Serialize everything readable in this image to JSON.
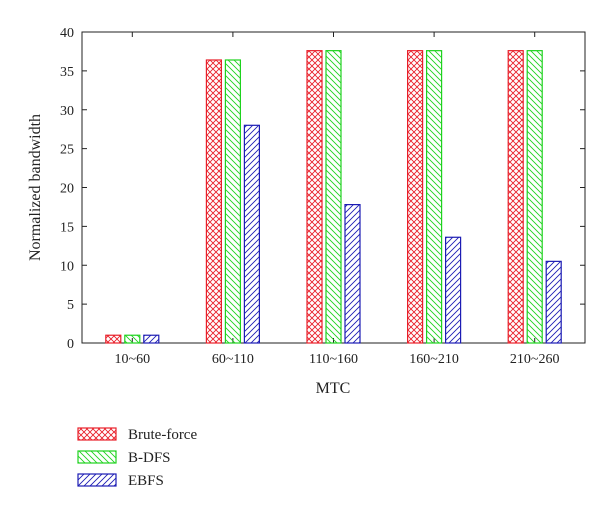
{
  "chart_data": {
    "type": "bar",
    "title": "",
    "xlabel": "MTC",
    "ylabel": "Normalized bandwidth",
    "ylim": [
      0,
      40
    ],
    "yticks": [
      0,
      5,
      10,
      15,
      20,
      25,
      30,
      35,
      40
    ],
    "categories": [
      "10~60",
      "60~110",
      "110~160",
      "160~210",
      "210~260"
    ],
    "legend_position": "bottom-left",
    "grid": false,
    "series": [
      {
        "name": "Brute-force",
        "color": "#e8202a",
        "pattern": "crosshatch",
        "values": [
          1.0,
          36.4,
          37.6,
          37.6,
          37.6
        ]
      },
      {
        "name": "B-DFS",
        "color": "#1ed21e",
        "pattern": "back-diagonal",
        "values": [
          1.0,
          36.4,
          37.6,
          37.6,
          37.6
        ]
      },
      {
        "name": "EBFS",
        "color": "#1c1cb4",
        "pattern": "forward-diagonal",
        "values": [
          1.0,
          28.0,
          17.8,
          13.6,
          10.5
        ]
      }
    ]
  }
}
